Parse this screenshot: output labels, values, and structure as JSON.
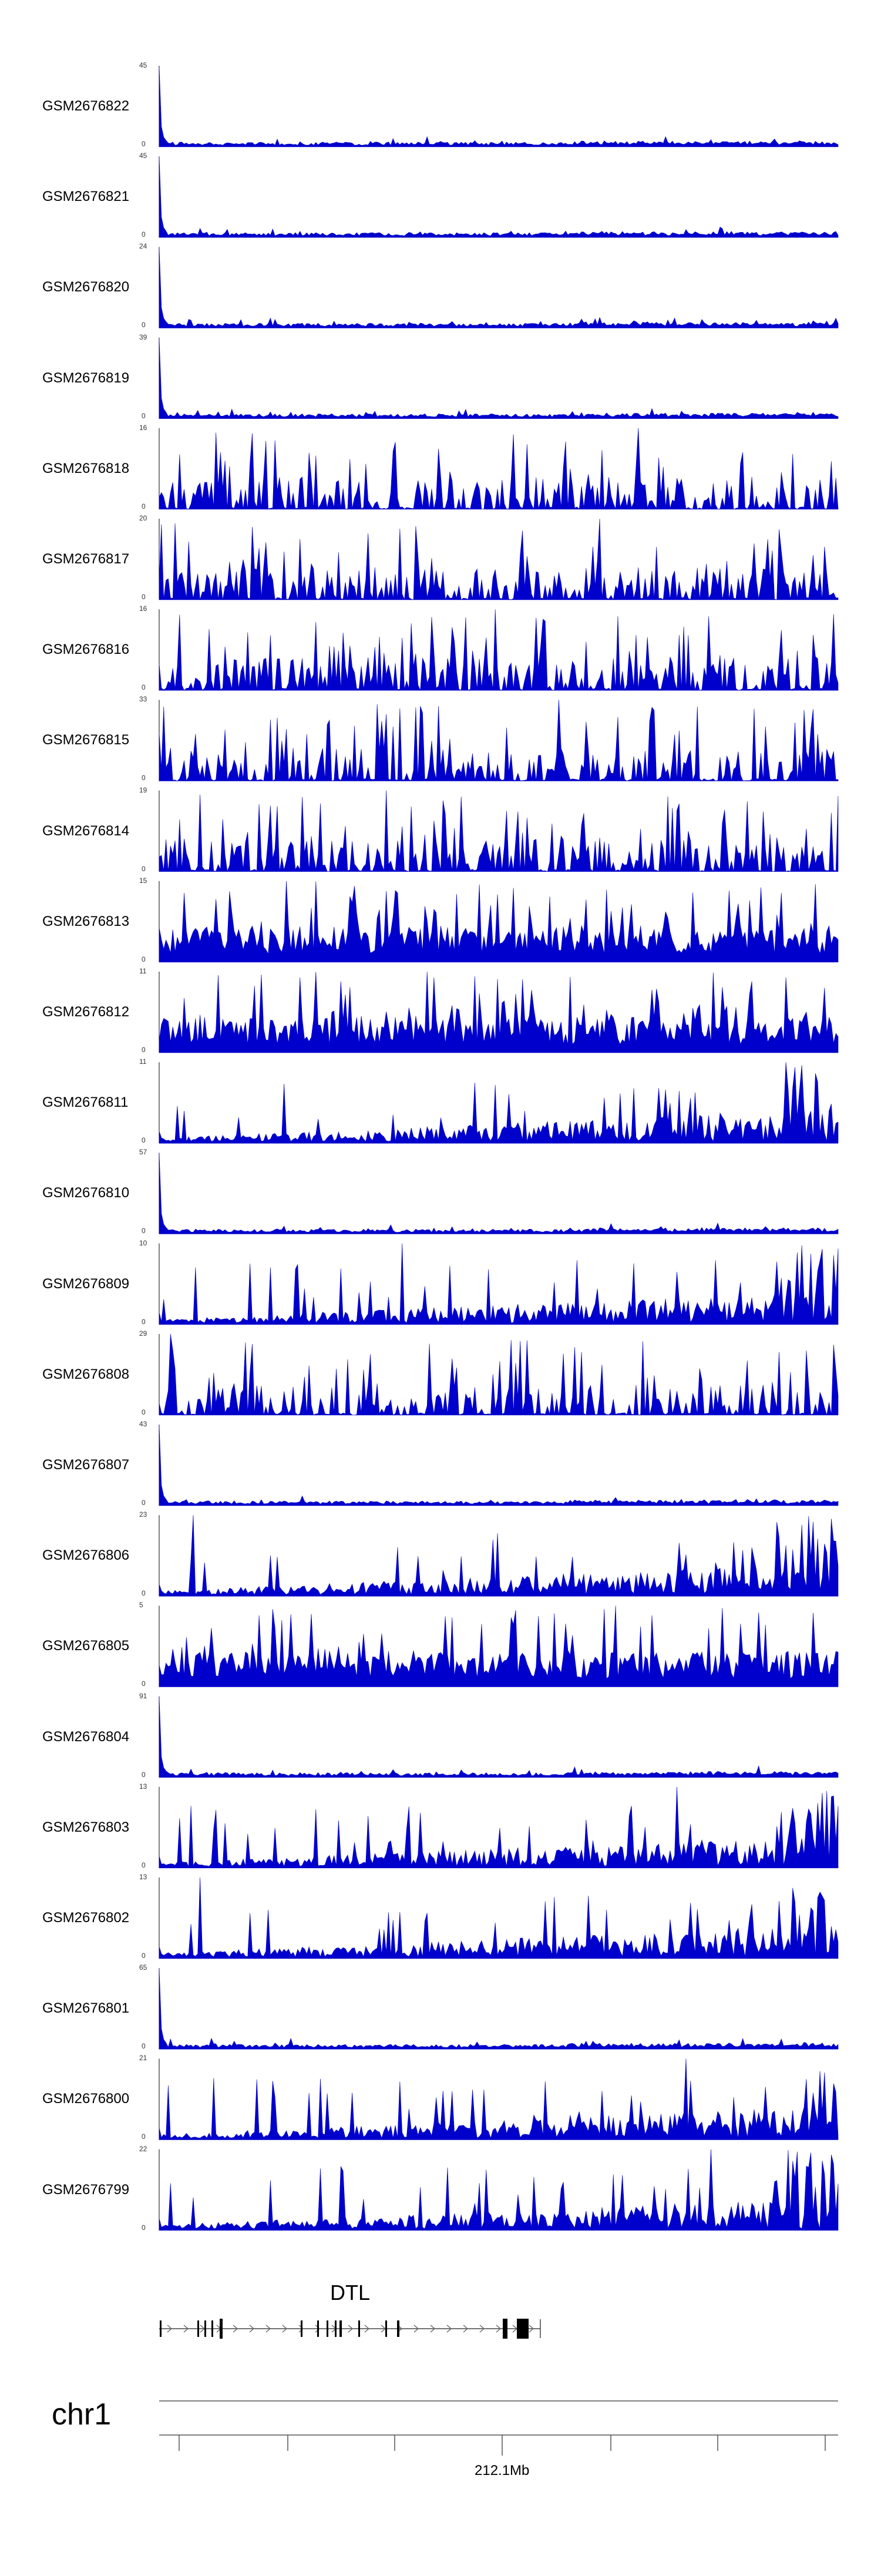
{
  "chart_data": {
    "type": "area",
    "color": "#0000cc",
    "axis_color": "#000000",
    "ymin_label": "0",
    "tracks": [
      {
        "name": "GSM2676822",
        "ymax": 45,
        "pattern": "flat"
      },
      {
        "name": "GSM2676821",
        "ymax": 45,
        "pattern": "flat"
      },
      {
        "name": "GSM2676820",
        "ymax": 24,
        "pattern": "flat"
      },
      {
        "name": "GSM2676819",
        "ymax": 39,
        "pattern": "flat"
      },
      {
        "name": "GSM2676818",
        "ymax": 16,
        "pattern": "sparse"
      },
      {
        "name": "GSM2676817",
        "ymax": 20,
        "pattern": "sparse"
      },
      {
        "name": "GSM2676816",
        "ymax": 16,
        "pattern": "sparse"
      },
      {
        "name": "GSM2676815",
        "ymax": 33,
        "pattern": "sparse"
      },
      {
        "name": "GSM2676814",
        "ymax": 19,
        "pattern": "sparse"
      },
      {
        "name": "GSM2676813",
        "ymax": 15,
        "pattern": "dense"
      },
      {
        "name": "GSM2676812",
        "ymax": 11,
        "pattern": "dense"
      },
      {
        "name": "GSM2676811",
        "ymax": 11,
        "pattern": "rising"
      },
      {
        "name": "GSM2676810",
        "ymax": 57,
        "pattern": "flat"
      },
      {
        "name": "GSM2676809",
        "ymax": 10,
        "pattern": "rising"
      },
      {
        "name": "GSM2676808",
        "ymax": 29,
        "pattern": "sparse"
      },
      {
        "name": "GSM2676807",
        "ymax": 43,
        "pattern": "flat"
      },
      {
        "name": "GSM2676806",
        "ymax": 23,
        "pattern": "rising"
      },
      {
        "name": "GSM2676805",
        "ymax": 5,
        "pattern": "dense"
      },
      {
        "name": "GSM2676804",
        "ymax": 91,
        "pattern": "flat"
      },
      {
        "name": "GSM2676803",
        "ymax": 13,
        "pattern": "rising"
      },
      {
        "name": "GSM2676802",
        "ymax": 13,
        "pattern": "rising"
      },
      {
        "name": "GSM2676801",
        "ymax": 65,
        "pattern": "flat"
      },
      {
        "name": "GSM2676800",
        "ymax": 21,
        "pattern": "rising"
      },
      {
        "name": "GSM2676799",
        "ymax": 22,
        "pattern": "rising"
      }
    ],
    "gene": {
      "name": "DTL",
      "strand": "+"
    },
    "chromosome": "chr1",
    "coordinate_label": "212.1Mb"
  }
}
